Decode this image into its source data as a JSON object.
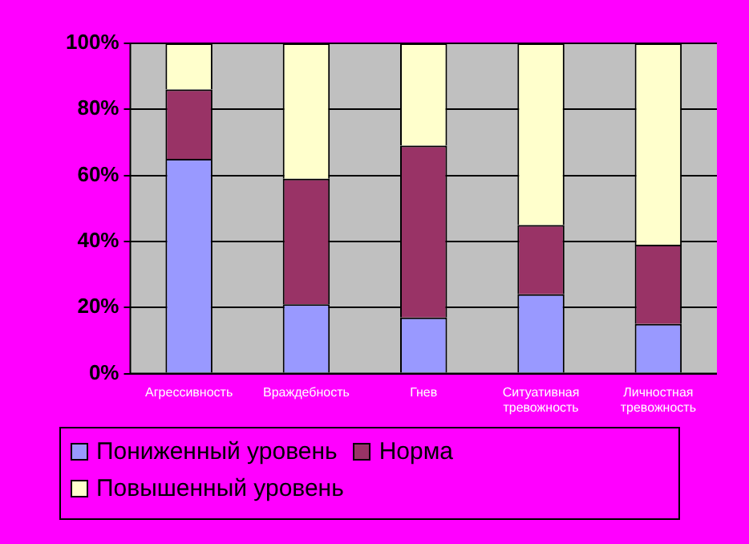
{
  "chart_data": {
    "type": "bar",
    "stacked": true,
    "categories": [
      "Агрессивность",
      "Враждебность",
      "Гнев",
      "Ситуативная тревожность",
      "Личностная тревожность"
    ],
    "series": [
      {
        "name": "Пониженный уровень",
        "color": "#9999ff",
        "values": [
          65,
          21,
          17,
          24,
          15
        ]
      },
      {
        "name": "Норма",
        "color": "#993366",
        "values": [
          21,
          38,
          52,
          21,
          24
        ]
      },
      {
        "name": "Повышенный уровень",
        "color": "#ffffcc",
        "values": [
          14,
          41,
          31,
          55,
          61
        ]
      }
    ],
    "ylim": [
      0,
      100
    ],
    "yticks": [
      {
        "value": 0,
        "label": "0%"
      },
      {
        "value": 20,
        "label": "20%"
      },
      {
        "value": 40,
        "label": "40%"
      },
      {
        "value": 60,
        "label": "60%"
      },
      {
        "value": 80,
        "label": "80%"
      },
      {
        "value": 100,
        "label": "100%"
      }
    ],
    "grid": "y",
    "legend": "bottom"
  }
}
